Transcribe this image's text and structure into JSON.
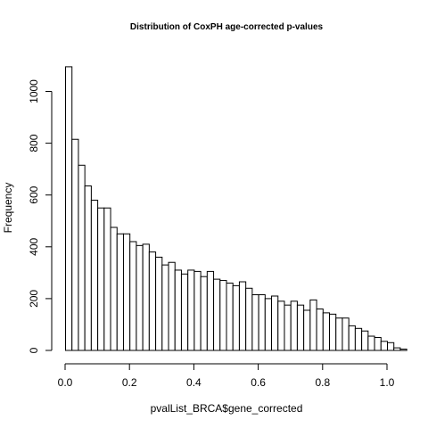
{
  "chart_data": {
    "type": "bar",
    "title": "Distribution of CoxPH age-corrected p-values",
    "xlabel": "pvalList_BRCA$gene_corrected",
    "ylabel": "Frequency",
    "bin_edges_start": 0.0,
    "bin_width": 0.02,
    "values": [
      1095,
      815,
      715,
      635,
      580,
      550,
      550,
      475,
      450,
      450,
      420,
      405,
      410,
      380,
      360,
      330,
      340,
      310,
      295,
      310,
      305,
      285,
      305,
      275,
      270,
      260,
      250,
      265,
      240,
      215,
      215,
      200,
      210,
      190,
      175,
      190,
      175,
      155,
      195,
      160,
      145,
      140,
      125,
      125,
      95,
      85,
      75,
      55,
      50,
      35,
      30,
      10,
      5
    ],
    "xlim": [
      0,
      1
    ],
    "ylim": [
      0,
      1100
    ],
    "x_ticks": [
      "0.0",
      "0.2",
      "0.4",
      "0.6",
      "0.8",
      "1.0"
    ],
    "y_ticks": [
      "0",
      "200",
      "400",
      "600",
      "800",
      "1000"
    ],
    "grid": false,
    "legend": "none"
  }
}
